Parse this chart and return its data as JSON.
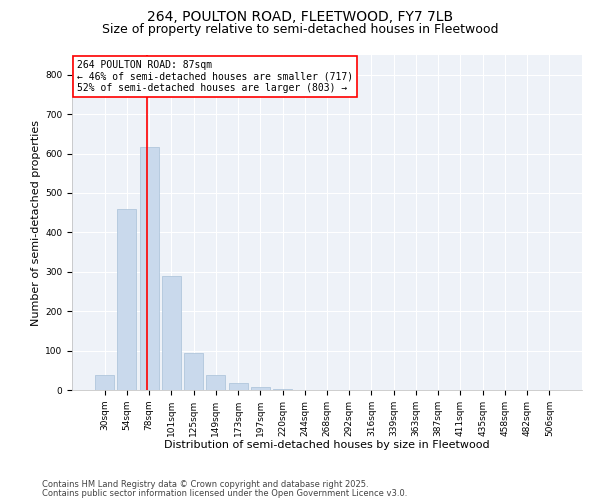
{
  "title1": "264, POULTON ROAD, FLEETWOOD, FY7 7LB",
  "title2": "Size of property relative to semi-detached houses in Fleetwood",
  "xlabel": "Distribution of semi-detached houses by size in Fleetwood",
  "ylabel": "Number of semi-detached properties",
  "categories": [
    "30sqm",
    "54sqm",
    "78sqm",
    "101sqm",
    "125sqm",
    "149sqm",
    "173sqm",
    "197sqm",
    "220sqm",
    "244sqm",
    "268sqm",
    "292sqm",
    "316sqm",
    "339sqm",
    "363sqm",
    "387sqm",
    "411sqm",
    "435sqm",
    "458sqm",
    "482sqm",
    "506sqm"
  ],
  "values": [
    38,
    458,
    617,
    290,
    95,
    38,
    18,
    7,
    2,
    0,
    0,
    0,
    0,
    0,
    0,
    0,
    0,
    0,
    0,
    0,
    0
  ],
  "bar_color": "#c9d9ec",
  "bar_edge_color": "#a8c0d8",
  "vline_color": "red",
  "annotation_text": "264 POULTON ROAD: 87sqm\n← 46% of semi-detached houses are smaller (717)\n52% of semi-detached houses are larger (803) →",
  "box_facecolor": "white",
  "box_edgecolor": "red",
  "ylim": [
    0,
    850
  ],
  "yticks": [
    0,
    100,
    200,
    300,
    400,
    500,
    600,
    700,
    800
  ],
  "footer1": "Contains HM Land Registry data © Crown copyright and database right 2025.",
  "footer2": "Contains public sector information licensed under the Open Government Licence v3.0.",
  "bg_color": "#eef2f8",
  "grid_color": "white",
  "title_fontsize": 10,
  "subtitle_fontsize": 9,
  "axis_label_fontsize": 8,
  "tick_fontsize": 6.5,
  "annotation_fontsize": 7,
  "footer_fontsize": 6
}
